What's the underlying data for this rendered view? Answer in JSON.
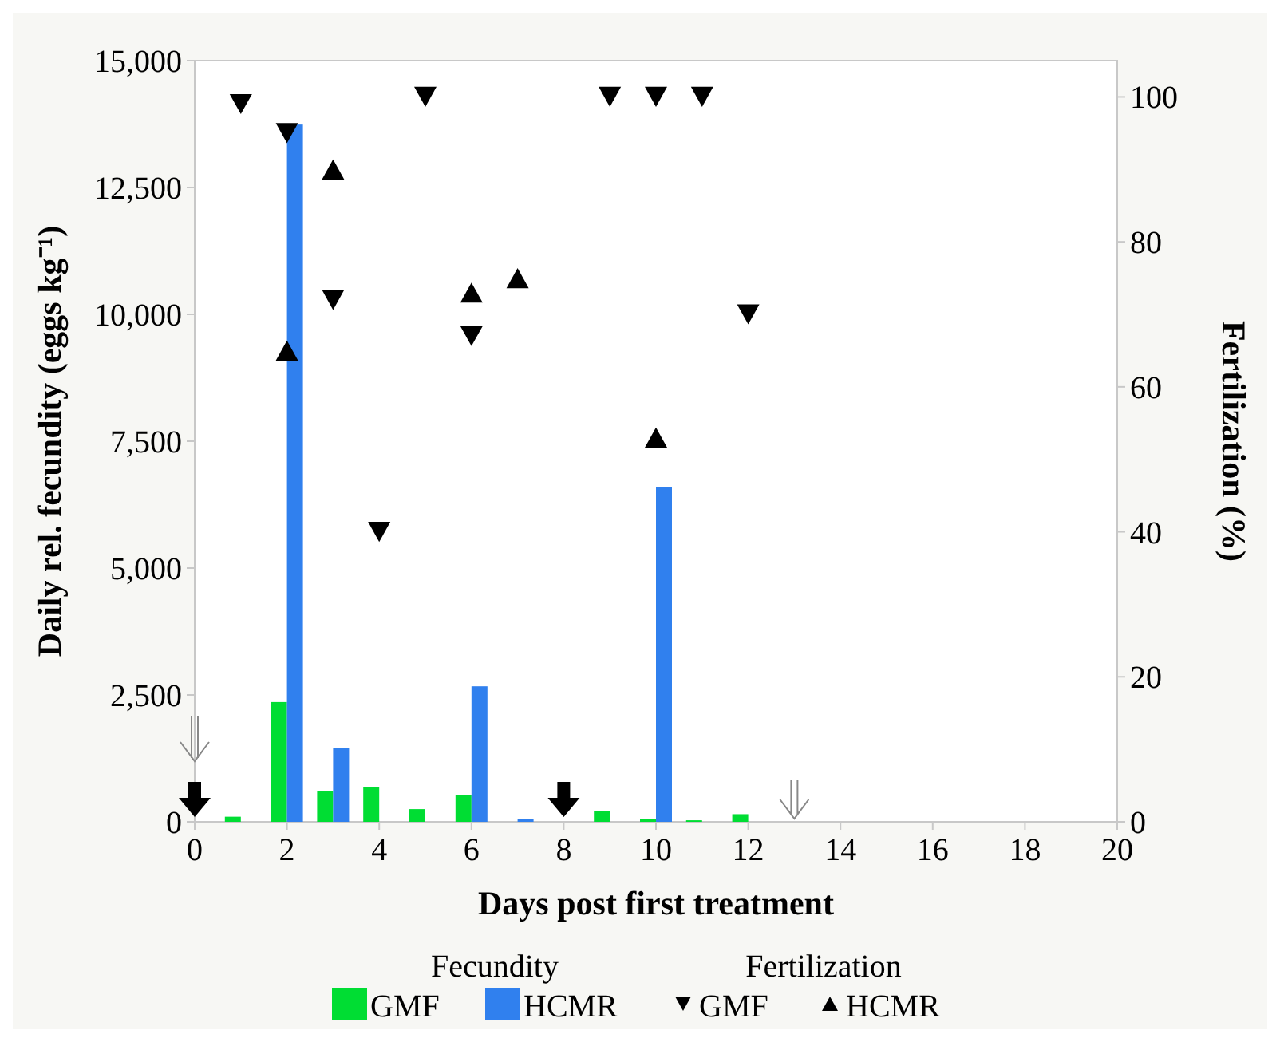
{
  "chart_data": {
    "type": "bar",
    "xlabel": "Days post first treatment",
    "ylabel": "Daily rel. fecundity (eggs kg⁻¹)",
    "y2label": "Fertilization (%)",
    "legend_title": "Fecundity",
    "annotations": [
      "Fertilization"
    ],
    "xlim": [
      0,
      20
    ],
    "xticks": [
      0,
      2,
      4,
      6,
      8,
      10,
      12,
      14,
      16,
      18,
      20
    ],
    "ylim": [
      0,
      15000
    ],
    "yticks": [
      {
        "value": 0,
        "label": "0"
      },
      {
        "value": 2500,
        "label": "2,500"
      },
      {
        "value": 5000,
        "label": "5,000"
      },
      {
        "value": 7500,
        "label": "7,500"
      },
      {
        "value": 10000,
        "label": "10,000"
      },
      {
        "value": 12500,
        "label": "12,500"
      },
      {
        "value": 15000,
        "label": "15,000"
      }
    ],
    "y2lim": [
      0,
      105
    ],
    "y2ticks": [
      0,
      20,
      40,
      60,
      80,
      100
    ],
    "grid": false,
    "legend": "bottom",
    "series": [
      {
        "name": "GMF",
        "color": "#00dd33",
        "x": [
          1,
          2,
          3,
          4,
          5,
          6,
          9,
          10,
          11,
          12
        ],
        "values": [
          100,
          2360,
          600,
          690,
          250,
          530,
          220,
          60,
          30,
          150
        ]
      },
      {
        "name": "HCMR",
        "color": "#3080ee",
        "x": [
          2,
          3,
          6,
          7,
          10
        ],
        "values": [
          13740,
          1450,
          2670,
          60,
          6600
        ]
      },
      {
        "name": "GMF",
        "type": "scatter",
        "axis": "y2",
        "color": "#000000",
        "marker": "triangle-down",
        "x": [
          1,
          2,
          3,
          4,
          5,
          6,
          9,
          10,
          11,
          12
        ],
        "values": [
          99,
          95,
          72,
          40,
          100,
          67,
          100,
          100,
          100,
          70
        ]
      },
      {
        "name": "HCMR",
        "type": "scatter",
        "axis": "y2",
        "color": "#000000",
        "marker": "triangle",
        "x": [
          2,
          3,
          6,
          7,
          10
        ],
        "values": [
          65,
          90,
          73,
          75,
          53
        ]
      }
    ]
  }
}
